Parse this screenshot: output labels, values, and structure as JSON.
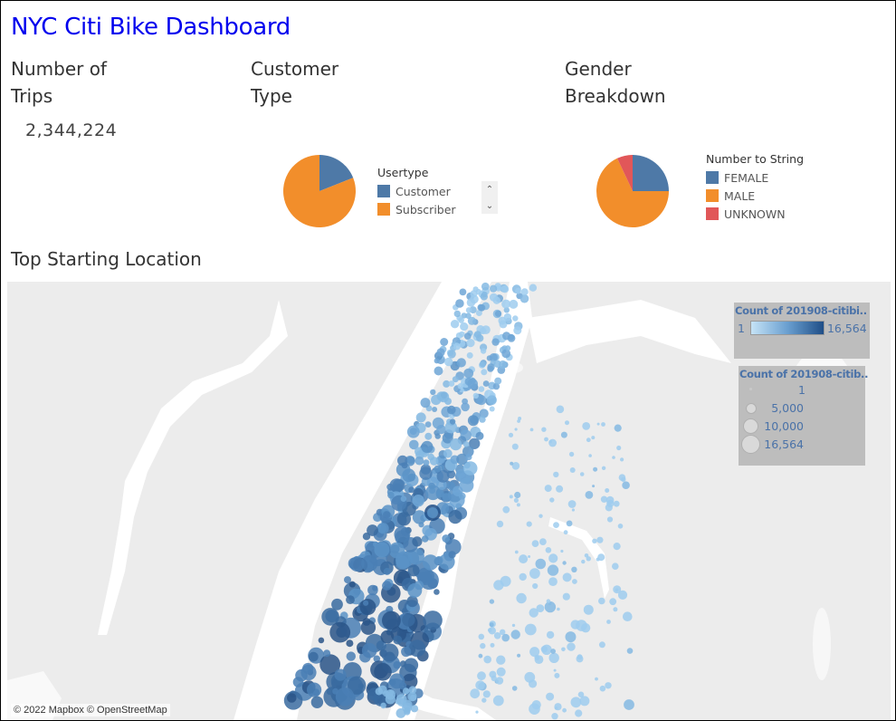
{
  "dashboard": {
    "title": "NYC Citi Bike Dashboard"
  },
  "trips": {
    "title_line1": "Number of",
    "title_line2": "Trips",
    "value": "2,344,224"
  },
  "customer_type": {
    "title_line1": "Customer",
    "title_line2": "Type",
    "legend_title": "Usertype",
    "legend": [
      {
        "label": "Customer",
        "color": "#4e79a7"
      },
      {
        "label": "Subscriber",
        "color": "#f28e2b"
      }
    ],
    "scroll_up_icon": "⌃",
    "scroll_down_icon": "⌄"
  },
  "gender": {
    "title_line1": "Gender",
    "title_line2": "Breakdown",
    "legend_title": "Number to String",
    "legend": [
      {
        "label": "FEMALE",
        "color": "#4e79a7"
      },
      {
        "label": "MALE",
        "color": "#f28e2b"
      },
      {
        "label": "UNKNOWN",
        "color": "#e15759"
      }
    ]
  },
  "map": {
    "title": "Top Starting Location",
    "attribution": "© 2022 Mapbox © OpenStreetMap",
    "color_legend": {
      "title": "Count of 201908-citibi..",
      "min": "1",
      "max": "16,564"
    },
    "size_legend": {
      "title": "Count of 201908-citib..",
      "items": [
        "1",
        "5,000",
        "10,000",
        "16,564"
      ]
    }
  },
  "chart_data": [
    {
      "type": "pie",
      "title": "Customer Type",
      "legend_title": "Usertype",
      "categories": [
        "Customer",
        "Subscriber"
      ],
      "values": [
        19,
        81
      ],
      "colors": [
        "#4e79a7",
        "#f28e2b"
      ],
      "legend_position": "right"
    },
    {
      "type": "pie",
      "title": "Gender Breakdown",
      "legend_title": "Number to String",
      "categories": [
        "FEMALE",
        "MALE",
        "UNKNOWN"
      ],
      "values": [
        25,
        68,
        7
      ],
      "colors": [
        "#4e79a7",
        "#f28e2b",
        "#e15759"
      ],
      "legend_position": "right"
    },
    {
      "type": "scatter",
      "title": "Top Starting Location",
      "description": "Bubble map of Citi Bike start stations; size and color encode trip count",
      "color_range": [
        1,
        16564
      ],
      "size_range": [
        1,
        16564
      ],
      "size_legend": [
        1,
        5000,
        10000,
        16564
      ]
    }
  ]
}
